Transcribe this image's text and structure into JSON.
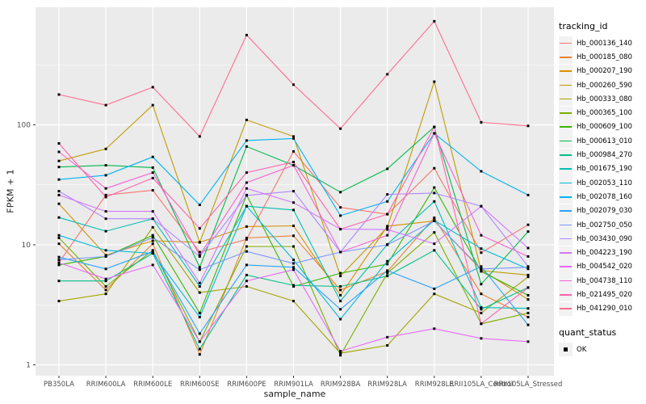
{
  "figure": {
    "panel_background": "#EBEBEB",
    "grid_color": "#FFFFFF",
    "tick_color": "#333333",
    "axis_text_color": "#4D4D4D",
    "marker_color": "#000000",
    "legend_key_fill": "#F2F2F2"
  },
  "axes": {
    "x_title": "sample_name",
    "y_title": "FPKM + 1",
    "y_tick_labels": [
      "1",
      "10",
      "100"
    ]
  },
  "legend": {
    "tracking_title": "tracking_id",
    "quant_title": "quant_status",
    "quant_items": [
      {
        "label": "OK",
        "marker": "black-square"
      }
    ]
  },
  "chart_data": {
    "type": "line",
    "title": "",
    "xlabel": "sample_name",
    "ylabel": "FPKM + 1",
    "y_scale": "log10",
    "ylim": [
      0.8,
      940
    ],
    "y_major_ticks": [
      1,
      10,
      100
    ],
    "y_minor_ticks": [
      3.162,
      31.62,
      316.2
    ],
    "legend_position": "right",
    "point_marker": "black-square",
    "categories": [
      "PB350LA",
      "RRIM600LA",
      "RRIM600LE",
      "RRIM600SE",
      "RRIM600PE",
      "RRIM901LA",
      "RRIM928BA",
      "RRIM928LA",
      "RRIM928LE",
      "RRII105LA_Control",
      "RRII105LA_Stressed"
    ],
    "series": [
      {
        "name": "Hb_000136_140",
        "color": "#F8766D",
        "values": [
          7.1,
          26,
          28.5,
          8.7,
          11.1,
          60,
          20.5,
          18,
          43.5,
          8.6,
          14.7
        ]
      },
      {
        "name": "Hb_000185_080",
        "color": "#EA8331",
        "values": [
          10.2,
          4.2,
          10.2,
          1.22,
          11.4,
          11.9,
          4.2,
          6.0,
          16.8,
          3.9,
          2.5
        ]
      },
      {
        "name": "Hb_000207_190",
        "color": "#D89000",
        "values": [
          22,
          8.2,
          10.8,
          10.5,
          14.2,
          14.4,
          3.8,
          14.3,
          15.8,
          6.2,
          3.5
        ]
      },
      {
        "name": "Hb_000260_590",
        "color": "#C09B00",
        "values": [
          50,
          63,
          146,
          10.5,
          110,
          80,
          5.5,
          14,
          229,
          6.1,
          5.6
        ]
      },
      {
        "name": "Hb_000333_080",
        "color": "#A3A500",
        "values": [
          3.4,
          3.9,
          14,
          4.0,
          4.5,
          3.4,
          1.25,
          1.45,
          3.9,
          2.7,
          5.4
        ]
      },
      {
        "name": "Hb_000365_100",
        "color": "#7CAE00",
        "values": [
          11.4,
          4.5,
          9.0,
          1.56,
          9.7,
          9.7,
          1.2,
          5.8,
          12.7,
          2.2,
          2.7
        ]
      },
      {
        "name": "Hb_000609_100",
        "color": "#39B600",
        "values": [
          6.8,
          8.0,
          12,
          2.7,
          26,
          4.5,
          5.8,
          6.9,
          30,
          6.0,
          3.8
        ]
      },
      {
        "name": "Hb_000613_010",
        "color": "#00BB4E",
        "values": [
          44.5,
          46,
          44,
          6.5,
          66,
          46,
          27.5,
          43,
          96,
          4.7,
          12.9
        ]
      },
      {
        "name": "Hb_000984_270",
        "color": "#00C087",
        "values": [
          5.0,
          5.0,
          8.5,
          1.35,
          5.6,
          4.6,
          4.5,
          5.5,
          9.0,
          2.9,
          4.4
        ]
      },
      {
        "name": "Hb_001675_190",
        "color": "#00C0B2",
        "values": [
          16.9,
          13,
          16.5,
          4.5,
          21,
          19.5,
          3.4,
          10.1,
          23,
          3.0,
          2.95
        ]
      },
      {
        "name": "Hb_002053_110",
        "color": "#00BCD8",
        "values": [
          12,
          9.0,
          8.5,
          2.5,
          21,
          7.5,
          2.4,
          7.3,
          16,
          9.3,
          6.3
        ]
      },
      {
        "name": "Hb_002078_160",
        "color": "#00B3F2",
        "values": [
          35,
          38,
          54,
          21.5,
          74,
          77,
          17.5,
          23,
          85,
          41,
          26
        ]
      },
      {
        "name": "Hb_002079_030",
        "color": "#29A3FF",
        "values": [
          7.9,
          6.3,
          8.8,
          1.82,
          6.8,
          6.5,
          2.9,
          6.1,
          4.3,
          6.6,
          2.15
        ]
      },
      {
        "name": "Hb_002750_050",
        "color": "#7997FF",
        "values": [
          7.5,
          8.0,
          11.5,
          6.2,
          8.8,
          7.0,
          8.7,
          10,
          15.8,
          6.3,
          6.5
        ]
      },
      {
        "name": "Hb_003430_090",
        "color": "#AE87FF",
        "values": [
          28,
          16.5,
          16.5,
          8.0,
          25.8,
          28,
          8.7,
          26.3,
          27,
          21,
          6.6
        ]
      },
      {
        "name": "Hb_004223_190",
        "color": "#D277FF",
        "values": [
          26,
          19,
          19,
          4.8,
          29.5,
          22.5,
          13.5,
          13.4,
          10.2,
          21,
          9.4
        ]
      },
      {
        "name": "Hb_004542_020",
        "color": "#E76BF3",
        "values": [
          7.1,
          5.2,
          6.8,
          1.56,
          5.0,
          6.2,
          1.3,
          1.7,
          2.0,
          1.66,
          1.56
        ]
      },
      {
        "name": "Hb_004738_110",
        "color": "#F564D4",
        "values": [
          59.5,
          29.5,
          40,
          8.2,
          33,
          46,
          8.7,
          12,
          85,
          12,
          8.0
        ]
      },
      {
        "name": "Hb_021495_020",
        "color": "#FF62AD",
        "values": [
          70,
          25,
          36,
          13.7,
          40,
          49,
          13.5,
          18,
          96,
          2.2,
          4.4
        ]
      },
      {
        "name": "Hb_041290_010",
        "color": "#FF6C90",
        "values": [
          179,
          146,
          206,
          80,
          560,
          216,
          93,
          264,
          730,
          105,
          98
        ]
      }
    ]
  }
}
